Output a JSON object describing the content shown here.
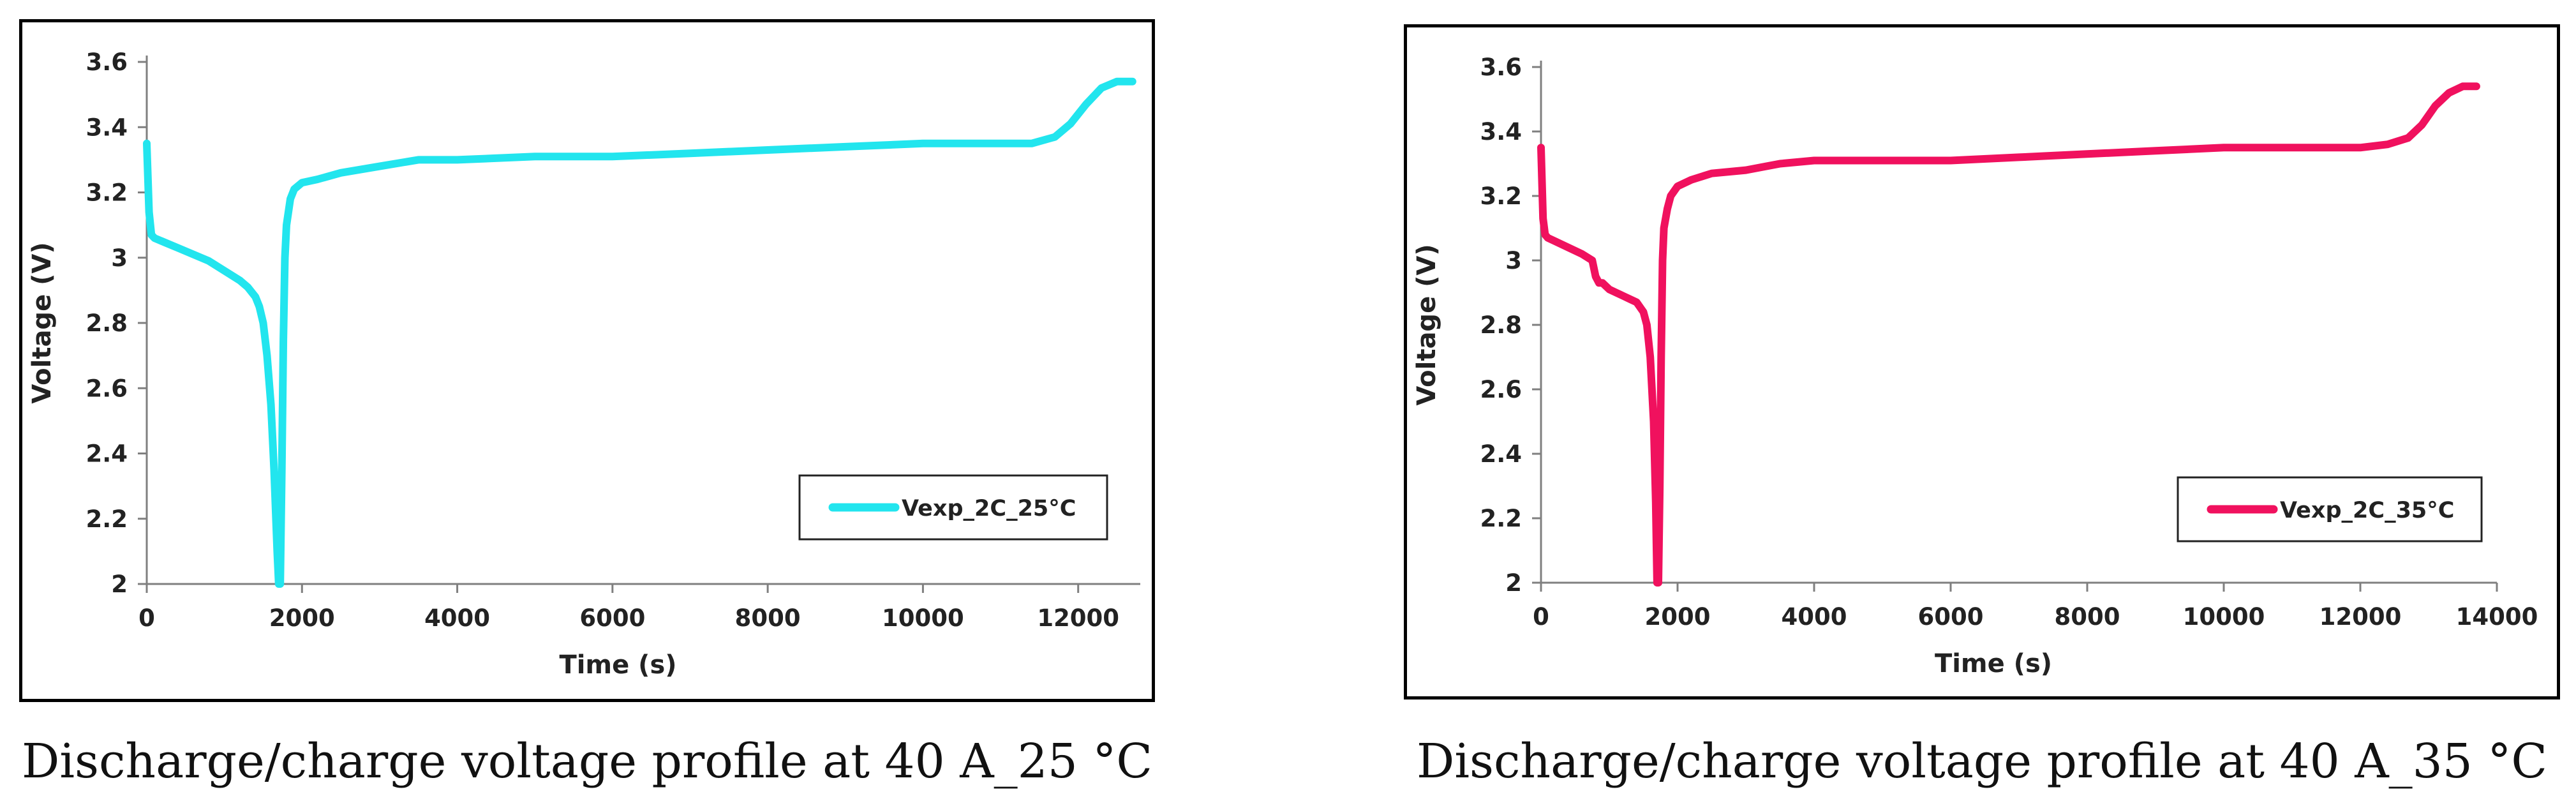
{
  "chart_data": [
    {
      "type": "line",
      "title": "",
      "xlabel": "Time (s)",
      "ylabel": "Voltage (V)",
      "xlim": [
        0,
        12800
      ],
      "ylim": [
        2,
        3.6
      ],
      "xticks": [
        0,
        2000,
        4000,
        6000,
        8000,
        10000,
        12000
      ],
      "xtick_labels": [
        "0",
        "2000",
        "4000",
        "6000",
        "8000",
        "10000",
        "12000"
      ],
      "yticks": [
        2,
        2.2,
        2.4,
        2.6,
        2.8,
        3,
        3.2,
        3.4,
        3.6
      ],
      "ytick_labels": [
        "2",
        "2.2",
        "2.4",
        "2.6",
        "2.8",
        "3",
        "3.2",
        "3.4",
        "3.6"
      ],
      "grid": false,
      "legend_position": "bottom-right",
      "caption": "Discharge/charge voltage profile at 40 A_25 °C",
      "series": [
        {
          "name": "Vexp_2C_25°C",
          "color": "#22e5ee",
          "x": [
            0,
            30,
            60,
            100,
            200,
            400,
            600,
            800,
            1000,
            1200,
            1300,
            1400,
            1450,
            1500,
            1550,
            1600,
            1640,
            1680,
            1700,
            1720,
            1740,
            1760,
            1780,
            1800,
            1850,
            1900,
            2000,
            2200,
            2500,
            3000,
            3500,
            4000,
            5000,
            6000,
            7000,
            8000,
            9000,
            10000,
            11000,
            11400,
            11700,
            11900,
            12100,
            12300,
            12500,
            12700
          ],
          "y": [
            3.35,
            3.14,
            3.07,
            3.06,
            3.05,
            3.03,
            3.01,
            2.99,
            2.96,
            2.93,
            2.91,
            2.88,
            2.85,
            2.8,
            2.7,
            2.55,
            2.35,
            2.1,
            2.0,
            2.0,
            2.35,
            2.75,
            3.0,
            3.1,
            3.18,
            3.21,
            3.23,
            3.24,
            3.26,
            3.28,
            3.3,
            3.3,
            3.31,
            3.31,
            3.32,
            3.33,
            3.34,
            3.35,
            3.35,
            3.35,
            3.37,
            3.41,
            3.47,
            3.52,
            3.54,
            3.54
          ]
        }
      ]
    },
    {
      "type": "line",
      "title": "",
      "xlabel": "Time (s)",
      "ylabel": "Voltage (V)",
      "xlim": [
        0,
        14000
      ],
      "ylim": [
        2,
        3.6
      ],
      "xticks": [
        0,
        2000,
        4000,
        6000,
        8000,
        10000,
        12000,
        14000
      ],
      "xtick_labels": [
        "0",
        "2000",
        "4000",
        "6000",
        "8000",
        "10000",
        "12000",
        "14000"
      ],
      "yticks": [
        2,
        2.2,
        2.4,
        2.6,
        2.8,
        3,
        3.2,
        3.4,
        3.6
      ],
      "ytick_labels": [
        "2",
        "2.2",
        "2.4",
        "2.6",
        "2.8",
        "3",
        "3.2",
        "3.4",
        "3.6"
      ],
      "grid": false,
      "legend_position": "bottom-right",
      "caption": "Discharge/charge voltage profile at 40 A_35 °C",
      "series": [
        {
          "name": "Vexp_2C_35°C",
          "color": "#f0115e",
          "x": [
            0,
            30,
            60,
            100,
            200,
            400,
            600,
            750,
            800,
            850,
            900,
            1000,
            1100,
            1200,
            1300,
            1400,
            1500,
            1550,
            1600,
            1650,
            1680,
            1700,
            1720,
            1740,
            1760,
            1780,
            1800,
            1850,
            1900,
            2000,
            2200,
            2500,
            3000,
            3500,
            4000,
            5000,
            6000,
            7000,
            8000,
            9000,
            10000,
            11000,
            12000,
            12400,
            12700,
            12900,
            13100,
            13300,
            13500,
            13700
          ],
          "y": [
            3.35,
            3.13,
            3.08,
            3.07,
            3.06,
            3.04,
            3.02,
            3.0,
            2.95,
            2.93,
            2.93,
            2.91,
            2.9,
            2.89,
            2.88,
            2.87,
            2.84,
            2.8,
            2.7,
            2.5,
            2.25,
            2.0,
            2.0,
            2.3,
            2.7,
            3.0,
            3.1,
            3.16,
            3.2,
            3.23,
            3.25,
            3.27,
            3.28,
            3.3,
            3.31,
            3.31,
            3.31,
            3.32,
            3.33,
            3.34,
            3.35,
            3.35,
            3.35,
            3.36,
            3.38,
            3.42,
            3.48,
            3.52,
            3.54,
            3.54
          ]
        }
      ]
    }
  ]
}
